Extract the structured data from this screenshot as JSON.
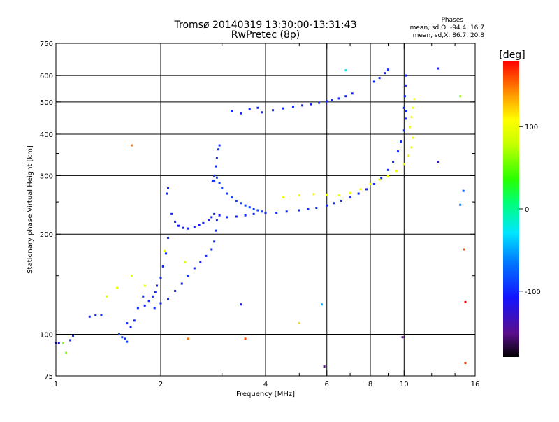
{
  "chart_data": {
    "type": "scatter",
    "title": "Tromsø 20140319 13:30:00-13:31:43",
    "subtitle": "RwPretec (8p)",
    "xlabel": "Frequency [MHz]",
    "ylabel": "Stationary phase Virtual Height [km]",
    "x_scale": "log",
    "y_scale": "log",
    "xlim": [
      1,
      16
    ],
    "ylim": [
      75,
      750
    ],
    "x_ticks": [
      1,
      2,
      4,
      6,
      8,
      10,
      16
    ],
    "x_tick_labels": [
      "1",
      "2",
      "4",
      "6",
      "8",
      "10",
      "16"
    ],
    "x_minor_ticks": [
      3,
      5,
      7,
      9,
      12,
      14
    ],
    "y_ticks": [
      75,
      100,
      200,
      300,
      400,
      500,
      600,
      750
    ],
    "y_tick_labels": [
      "75",
      "100",
      "200",
      "300",
      "400",
      "500",
      "600",
      "750"
    ],
    "y_minor_ticks": [
      150,
      250,
      350
    ],
    "grid": true,
    "phases_title": "Phases",
    "phases_stats": [
      "mean, sd,O: -94.4, 16.7",
      "mean, sd,X:  86.7, 20.8"
    ],
    "colorbar": {
      "label": "[deg]",
      "range": [
        -180,
        180
      ],
      "ticks": [
        100,
        0,
        -100
      ],
      "tick_labels": [
        "100",
        "0",
        "-100"
      ]
    },
    "series": [
      {
        "traces": [
          {
            "x": [
              1.0,
              1.02
            ],
            "y": [
              94,
              94
            ],
            "phase": -110
          },
          {
            "x": [
              1.1,
              1.12
            ],
            "y": [
              96,
              99
            ],
            "phase": -100
          },
          {
            "x": [
              1.25,
              1.3,
              1.35
            ],
            "y": [
              113,
              114,
              114
            ],
            "phase": -100
          },
          {
            "x": [
              1.52,
              1.55,
              1.58,
              1.6
            ],
            "y": [
              100,
              98,
              97,
              95
            ],
            "phase": -90
          },
          {
            "x": [
              1.6,
              1.64,
              1.68,
              1.72,
              1.78
            ],
            "y": [
              108,
              105,
              110,
              120,
              130
            ],
            "phase": -100
          },
          {
            "x": [
              1.8,
              1.85,
              1.9,
              1.93
            ],
            "y": [
              122,
              126,
              130,
              134
            ],
            "phase": -100
          },
          {
            "x": [
              1.95,
              2.0,
              2.03,
              2.07,
              2.1
            ],
            "y": [
              140,
              148,
              160,
              175,
              195
            ],
            "phase": -100
          },
          {
            "x": [
              2.08,
              2.1
            ],
            "y": [
              265,
              275
            ],
            "phase": -100
          },
          {
            "x": [
              2.15,
              2.2,
              2.25,
              2.32,
              2.4,
              2.5,
              2.58,
              2.65,
              2.75,
              2.8,
              2.85
            ],
            "y": [
              230,
              218,
              212,
              209,
              208,
              210,
              213,
              216,
              220,
              225,
              230
            ],
            "phase": -105
          },
          {
            "x": [
              1.92,
              2.0,
              2.1,
              2.2,
              2.3,
              2.4,
              2.5,
              2.6,
              2.7,
              2.8,
              2.85,
              2.88,
              2.9
            ],
            "y": [
              120,
              124,
              128,
              135,
              142,
              150,
              158,
              165,
              172,
              180,
              190,
              205,
              220
            ],
            "phase": -100
          },
          {
            "x": [
              2.82,
              2.85,
              2.88,
              2.9,
              2.93,
              2.95
            ],
            "y": [
              290,
              300,
              320,
              340,
              360,
              370
            ],
            "phase": -100
          },
          {
            "x": [
              2.85,
              2.9,
              2.95,
              3.0,
              3.1,
              3.2,
              3.3,
              3.4,
              3.5,
              3.6,
              3.7,
              3.8,
              3.9,
              4.0
            ],
            "y": [
              290,
              296,
              285,
              275,
              265,
              258,
              252,
              248,
              244,
              241,
              238,
              236,
              234,
              232
            ],
            "phase": -90
          },
          {
            "x": [
              2.95,
              3.1,
              3.3,
              3.5,
              3.7,
              4.0,
              4.3,
              4.6,
              5.0,
              5.3,
              5.6,
              6.0,
              6.3,
              6.6,
              7.0,
              7.4,
              7.8,
              8.2,
              8.6,
              9.0,
              9.3,
              9.6,
              9.8,
              10.0,
              10.1,
              10.15
            ],
            "y": [
              228,
              225,
              226,
              228,
              230,
              231,
              232,
              234,
              236,
              238,
              240,
              244,
              248,
              252,
              258,
              265,
              273,
              283,
              295,
              312,
              330,
              355,
              380,
              410,
              445,
              470
            ],
            "phase": -100
          },
          {
            "x": [
              10.0,
              10.05,
              10.1,
              10.12
            ],
            "y": [
              480,
              520,
              560,
              600
            ],
            "phase": -100
          },
          {
            "x": [
              3.2,
              3.4,
              3.6,
              3.8
            ],
            "y": [
              470,
              462,
              475,
              480
            ],
            "phase": -100
          },
          {
            "x": [
              3.9,
              4.2,
              4.5,
              4.8,
              5.1,
              5.4,
              5.7,
              6.0
            ],
            "y": [
              465,
              472,
              478,
              483,
              488,
              492,
              497,
              502
            ],
            "phase": -100
          },
          {
            "x": [
              6.2,
              6.5,
              6.8,
              7.1
            ],
            "y": [
              506,
              512,
              520,
              530
            ],
            "phase": -100
          },
          {
            "x": [
              8.2,
              8.5,
              8.8,
              9.0
            ],
            "y": [
              575,
              590,
              610,
              625
            ],
            "phase": -100
          },
          {
            "x": [
              4.5,
              5.0,
              5.5,
              6.0,
              6.5,
              7.0,
              7.5,
              8.0,
              8.5,
              9.0,
              9.5,
              10.0,
              10.3,
              10.5,
              10.6
            ],
            "y": [
              258,
              262,
              264,
              263,
              262,
              266,
              273,
              283,
              292,
              300,
              310,
              325,
              345,
              365,
              390
            ],
            "phase": 100
          },
          {
            "x": [
              10.4,
              10.5,
              10.6,
              10.7
            ],
            "y": [
              420,
              450,
              480,
              510
            ],
            "phase": 100
          },
          {
            "x": [
              1.4,
              1.5,
              1.65,
              1.8,
              2.05,
              2.35
            ],
            "y": [
              130,
              138,
              150,
              140,
              178,
              165
            ],
            "phase": 95
          }
        ],
        "points": [
          {
            "x": 1.05,
            "y": 94,
            "phase": 60
          },
          {
            "x": 1.07,
            "y": 88,
            "phase": 60
          },
          {
            "x": 1.65,
            "y": 370,
            "phase": 150
          },
          {
            "x": 2.4,
            "y": 97,
            "phase": 150
          },
          {
            "x": 3.5,
            "y": 97,
            "phase": 160
          },
          {
            "x": 3.4,
            "y": 123,
            "phase": -110
          },
          {
            "x": 5.0,
            "y": 108,
            "phase": 120
          },
          {
            "x": 5.8,
            "y": 123,
            "phase": -50
          },
          {
            "x": 5.9,
            "y": 80,
            "phase": -150
          },
          {
            "x": 6.8,
            "y": 622,
            "phase": -20
          },
          {
            "x": 9.9,
            "y": 98,
            "phase": -150
          },
          {
            "x": 12.5,
            "y": 630,
            "phase": -100
          },
          {
            "x": 12.5,
            "y": 330,
            "phase": -120
          },
          {
            "x": 14.5,
            "y": 520,
            "phase": 60
          },
          {
            "x": 14.8,
            "y": 270,
            "phase": -80
          },
          {
            "x": 14.5,
            "y": 245,
            "phase": -60
          },
          {
            "x": 14.9,
            "y": 180,
            "phase": 160
          },
          {
            "x": 15.0,
            "y": 125,
            "phase": 180
          },
          {
            "x": 15.0,
            "y": 82,
            "phase": 165
          }
        ]
      }
    ]
  }
}
